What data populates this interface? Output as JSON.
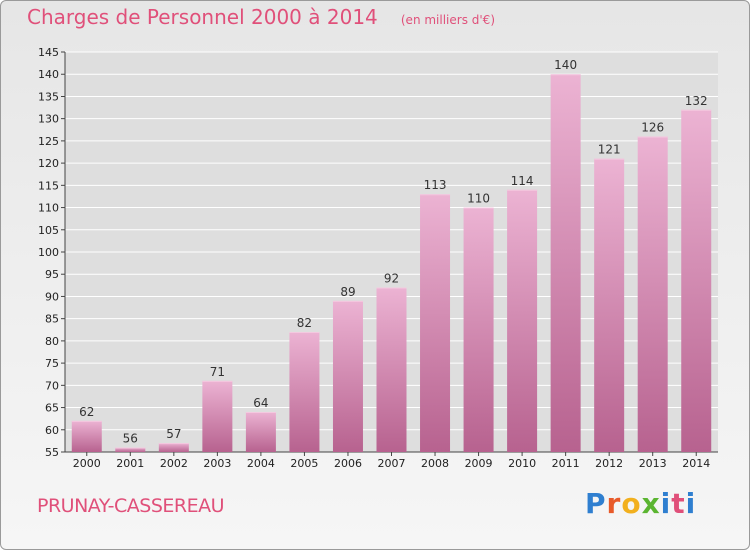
{
  "header": {
    "title": "Charges de Personnel 2000 à 2014",
    "unit": "(en milliers d'€)"
  },
  "footer": {
    "commune": "PRUNAY-CASSEREAU",
    "logo": {
      "text": "Proxiti",
      "letter_colors": [
        "#2f7fd0",
        "#e85a2a",
        "#f2b01e",
        "#5bb531",
        "#2f7fd0",
        "#e0507a",
        "#2f7fd0"
      ]
    }
  },
  "chart_data": {
    "type": "bar",
    "title": "Charges de Personnel 2000 à 2014",
    "subtitle": "(en milliers d'€)",
    "xlabel": "",
    "ylabel": "",
    "categories": [
      "2000",
      "2001",
      "2002",
      "2003",
      "2004",
      "2005",
      "2006",
      "2007",
      "2008",
      "2009",
      "2010",
      "2011",
      "2012",
      "2013",
      "2014"
    ],
    "values": [
      62,
      56,
      57,
      71,
      64,
      82,
      89,
      92,
      113,
      110,
      114,
      140,
      121,
      126,
      132
    ],
    "ylim": [
      55,
      145
    ],
    "yticks": [
      55,
      60,
      65,
      70,
      75,
      80,
      85,
      90,
      95,
      100,
      105,
      110,
      115,
      120,
      125,
      130,
      135,
      140,
      145
    ],
    "grid": true,
    "bar_color": "#d988b4",
    "bar_color_light": "#ecb3d3",
    "bar_color_dark": "#b7628f",
    "axis_color": "#444444",
    "grid_color": "#ffffff"
  }
}
